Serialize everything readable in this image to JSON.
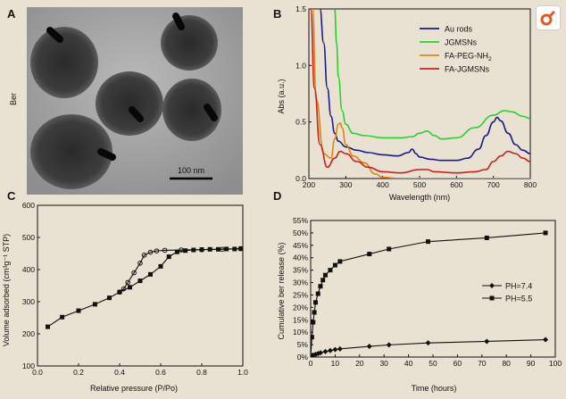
{
  "panels": {
    "a_letter": "A",
    "b_letter": "B",
    "c_letter": "C",
    "d_letter": "D"
  },
  "micrograph": {
    "sample_label": "Ber",
    "scale_bar_label": "100 nm"
  },
  "colors": {
    "au_rods": "#1a1a8c",
    "jgmsns": "#2bd02b",
    "fa_peg": "#d8880f",
    "fa_jgmsns": "#cc2020",
    "black": "#111111",
    "logo": "#e25a1c"
  },
  "chart_data": [
    {
      "id": "B",
      "type": "line",
      "xlabel": "Wavelength (nm)",
      "ylabel": "Abs (a.u.)",
      "xlim": [
        200,
        800
      ],
      "ylim": [
        0,
        1.5
      ],
      "xticks": [
        200,
        300,
        400,
        500,
        600,
        700,
        800
      ],
      "yticks": [
        0.0,
        0.5,
        1.0,
        1.5
      ],
      "ytick_labels": [
        "0.0",
        "0.5",
        "1.0",
        "1.5"
      ],
      "legend_position": "top-right",
      "series": [
        {
          "name": "Au rods",
          "color": "#1a1a8c",
          "x": [
            230,
            240,
            250,
            260,
            270,
            280,
            300,
            330,
            360,
            400,
            440,
            470,
            480,
            490,
            500,
            530,
            560,
            600,
            630,
            660,
            680,
            700,
            710,
            720,
            740,
            760,
            780,
            800
          ],
          "y": [
            1.5,
            1.2,
            0.8,
            0.55,
            0.4,
            0.33,
            0.28,
            0.25,
            0.23,
            0.21,
            0.2,
            0.23,
            0.26,
            0.22,
            0.19,
            0.17,
            0.16,
            0.16,
            0.18,
            0.26,
            0.38,
            0.5,
            0.54,
            0.51,
            0.4,
            0.3,
            0.25,
            0.22
          ]
        },
        {
          "name": "JGMSNs",
          "color": "#2bd02b",
          "x": [
            270,
            275,
            280,
            290,
            300,
            320,
            350,
            400,
            450,
            480,
            500,
            520,
            540,
            560,
            600,
            650,
            700,
            730,
            750,
            780,
            800
          ],
          "y": [
            1.5,
            1.2,
            0.9,
            0.6,
            0.48,
            0.4,
            0.38,
            0.36,
            0.36,
            0.37,
            0.4,
            0.42,
            0.38,
            0.35,
            0.36,
            0.45,
            0.56,
            0.6,
            0.59,
            0.55,
            0.53
          ]
        },
        {
          "name": "FA-PEG-NH2",
          "color": "#d8880f",
          "x": [
            210,
            220,
            240,
            260,
            270,
            280,
            285,
            290,
            300,
            320,
            350,
            380,
            400,
            450,
            500,
            600,
            700,
            800
          ],
          "y": [
            1.5,
            0.7,
            0.22,
            0.18,
            0.35,
            0.48,
            0.49,
            0.45,
            0.3,
            0.2,
            0.14,
            0.04,
            0.01,
            0.0,
            0.0,
            0.0,
            0.0,
            0.0
          ]
        },
        {
          "name": "FA-JGMSNs",
          "color": "#cc2020",
          "x": [
            205,
            215,
            230,
            250,
            270,
            285,
            300,
            330,
            360,
            400,
            450,
            500,
            520,
            540,
            600,
            650,
            680,
            700,
            720,
            740,
            760,
            780,
            800
          ],
          "y": [
            1.5,
            0.8,
            0.3,
            0.1,
            0.18,
            0.24,
            0.22,
            0.15,
            0.1,
            0.06,
            0.05,
            0.08,
            0.08,
            0.06,
            0.05,
            0.06,
            0.08,
            0.15,
            0.2,
            0.24,
            0.22,
            0.18,
            0.15
          ]
        }
      ]
    },
    {
      "id": "C",
      "type": "line",
      "xlabel": "Relative pressure (P/Po)",
      "ylabel": "Volume adsorbed (cm³g⁻¹ STP)",
      "xlim": [
        0,
        1.0
      ],
      "ylim": [
        100,
        600
      ],
      "xticks": [
        0.0,
        0.2,
        0.4,
        0.6,
        0.8,
        1.0
      ],
      "xtick_labels": [
        "0.0",
        "0.2",
        "0.4",
        "0.6",
        "0.8",
        "1.0"
      ],
      "yticks": [
        100,
        200,
        300,
        400,
        500,
        600
      ],
      "series": [
        {
          "name": "",
          "color": "#111111",
          "marker": "square",
          "x": [
            0.05,
            0.12,
            0.2,
            0.28,
            0.35,
            0.4,
            0.45,
            0.5,
            0.55,
            0.6,
            0.64,
            0.68,
            0.72,
            0.76,
            0.8,
            0.84,
            0.88,
            0.92,
            0.96,
            0.99
          ],
          "y": [
            222,
            252,
            272,
            292,
            312,
            330,
            345,
            365,
            385,
            410,
            440,
            455,
            459,
            461,
            462,
            463,
            463,
            464,
            464,
            465
          ]
        },
        {
          "name": "",
          "color": "#111111",
          "marker": "circle",
          "x": [
            0.99,
            0.9,
            0.8,
            0.7,
            0.62,
            0.58,
            0.55,
            0.52,
            0.5,
            0.47,
            0.44,
            0.42,
            0.4
          ],
          "y": [
            465,
            463,
            462,
            461,
            460,
            458,
            454,
            445,
            420,
            390,
            360,
            340,
            330
          ]
        }
      ]
    },
    {
      "id": "D",
      "type": "line",
      "xlabel": "Time (hours)",
      "ylabel": "Cumulative ber release (%)",
      "xlim": [
        0,
        100
      ],
      "ylim": [
        0,
        55
      ],
      "xticks": [
        0,
        10,
        20,
        30,
        40,
        50,
        60,
        70,
        80,
        90,
        100
      ],
      "yticks": [
        0,
        5,
        10,
        15,
        20,
        25,
        30,
        35,
        40,
        45,
        50,
        55
      ],
      "ytick_labels": [
        "0%",
        "5%",
        "10%",
        "15%",
        "20%",
        "25%",
        "30%",
        "35%",
        "40%",
        "45%",
        "50%",
        "55%"
      ],
      "legend_position": "right",
      "series": [
        {
          "name": "PH=7.4",
          "color": "#111111",
          "marker": "diamond",
          "x": [
            0,
            0.5,
            1,
            2,
            3,
            4,
            6,
            8,
            10,
            12,
            24,
            32,
            48,
            72,
            96
          ],
          "y": [
            0,
            0.5,
            0.8,
            1.1,
            1.4,
            1.7,
            2.2,
            2.6,
            3.0,
            3.3,
            4.3,
            4.9,
            5.7,
            6.3,
            7.0
          ]
        },
        {
          "name": "PH=5.5",
          "color": "#111111",
          "marker": "square",
          "x": [
            0,
            0.5,
            1,
            1.5,
            2,
            3,
            4,
            5,
            6,
            8,
            10,
            12,
            24,
            32,
            48,
            72,
            96
          ],
          "y": [
            0,
            8,
            14,
            18,
            22,
            25.5,
            28.5,
            31,
            33,
            35,
            37,
            38.5,
            41.5,
            43.5,
            46.5,
            48,
            50
          ]
        }
      ]
    }
  ]
}
